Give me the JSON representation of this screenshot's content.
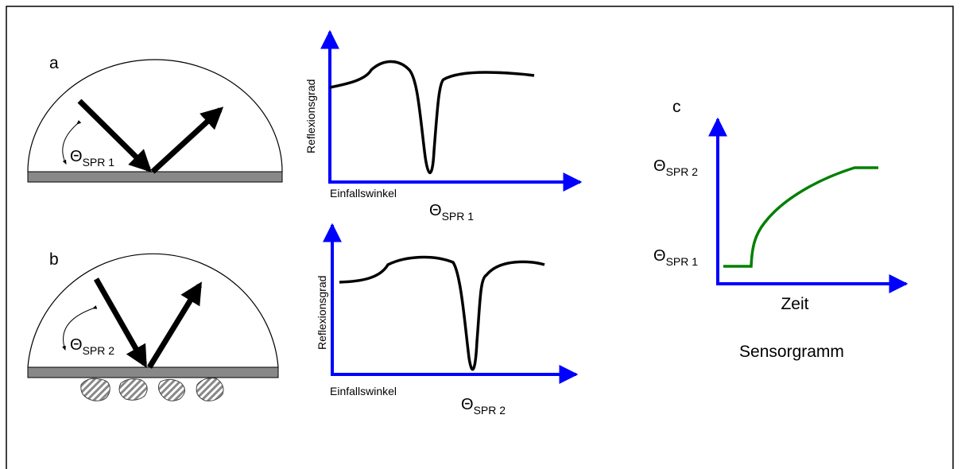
{
  "panels": {
    "a": {
      "label": "a",
      "angle": {
        "symbol": "Θ",
        "subscript": "SPR 1"
      }
    },
    "b": {
      "label": "b",
      "angle": {
        "symbol": "Θ",
        "subscript": "SPR 2"
      }
    },
    "c": {
      "label": "c",
      "x_label": "Zeit",
      "caption": "Sensorgramm",
      "upper": {
        "symbol": "Θ",
        "subscript": "SPR 2"
      },
      "lower": {
        "symbol": "Θ",
        "subscript": "SPR 1"
      }
    }
  },
  "graph1": {
    "y_label": "Reflexionsgrad",
    "x_label": "Einfallswinkel",
    "dip": {
      "symbol": "Θ",
      "subscript": "SPR 1"
    }
  },
  "graph2": {
    "y_label": "Reflexionsgrad",
    "x_label": "Einfallswinkel",
    "dip": {
      "symbol": "Θ",
      "subscript": "SPR 2"
    }
  }
}
